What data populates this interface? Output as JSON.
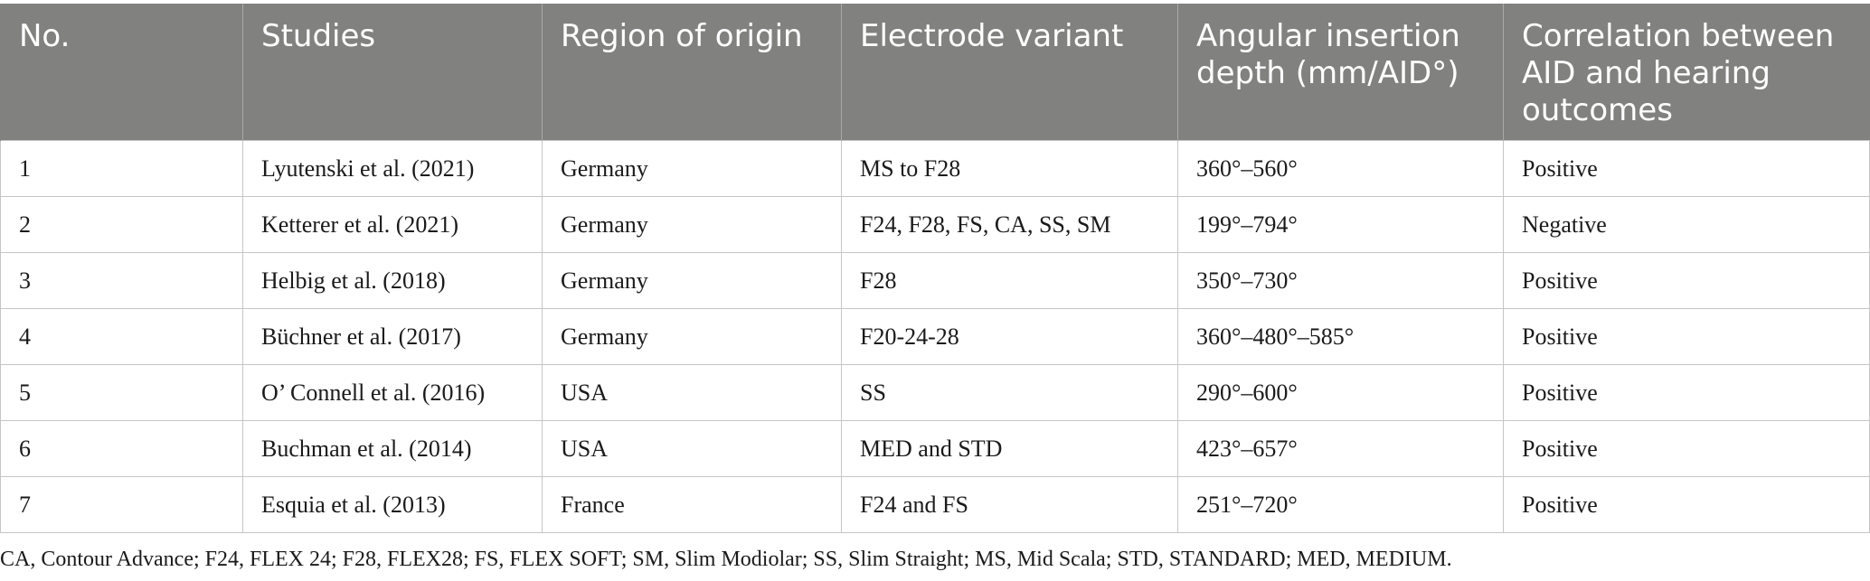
{
  "table": {
    "headers": [
      "No.",
      "Studies",
      "Region of origin",
      "Electrode variant",
      "Angular insertion depth (mm/AID°)",
      "Correlation between AID and hearing outcomes"
    ],
    "rows": [
      [
        "1",
        "Lyutenski et al. (2021)",
        "Germany",
        "MS to F28",
        "360°–560°",
        "Positive"
      ],
      [
        "2",
        "Ketterer et al. (2021)",
        "Germany",
        "F24, F28, FS, CA, SS, SM",
        "199°–794°",
        "Negative"
      ],
      [
        "3",
        "Helbig et al. (2018)",
        "Germany",
        "F28",
        "350°–730°",
        "Positive"
      ],
      [
        "4",
        "Büchner et al. (2017)",
        "Germany",
        "F20-24-28",
        "360°–480°–585°",
        "Positive"
      ],
      [
        "5",
        "O’ Connell et al. (2016)",
        "USA",
        "SS",
        "290°–600°",
        "Positive"
      ],
      [
        "6",
        "Buchman et al. (2014)",
        "USA",
        "MED and STD",
        "423°–657°",
        "Positive"
      ],
      [
        "7",
        "Esquia et al. (2013)",
        "France",
        "F24 and FS",
        "251°–720°",
        "Positive"
      ]
    ]
  },
  "footnote": "CA, Contour Advance; F24, FLEX 24; F28, FLEX28; FS, FLEX SOFT; SM, Slim Modiolar; SS, Slim Straight; MS, Mid Scala; STD, STANDARD; MED, MEDIUM.",
  "colors": {
    "header_bg": "#818280",
    "header_text": "#ffffff",
    "grid": "#c6c6c6"
  }
}
